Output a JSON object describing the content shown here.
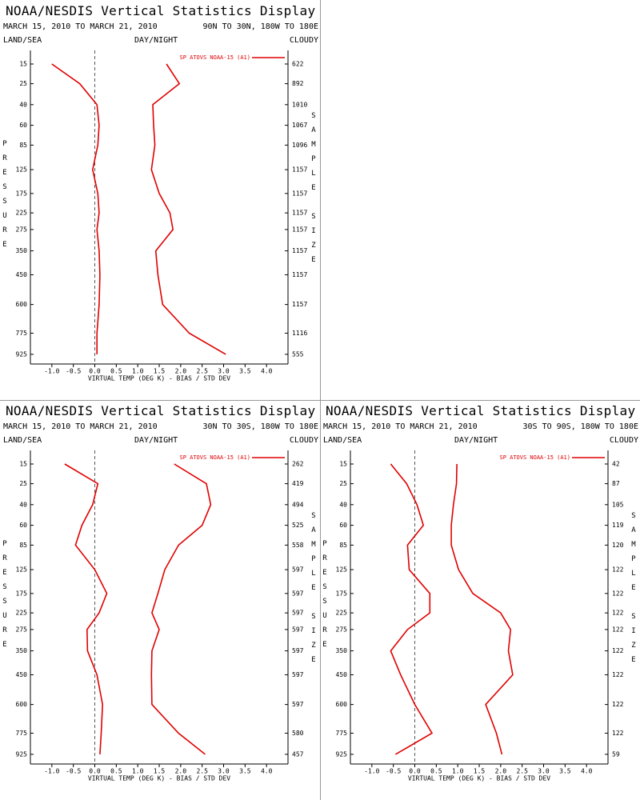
{
  "chart_data": [
    {
      "type": "line",
      "title": "NOAA/NESDIS Vertical Statistics Display",
      "subtitle": "MARCH 15, 2010 TO MARCH 21, 2010",
      "region": "90N TO 30N, 180W TO 180E",
      "land_sea": "LAND/SEA",
      "day_night": "DAY/NIGHT",
      "cloudy": "CLOUDY",
      "ylabel": "PRESSURE",
      "y2label": "SAMPLE SIZE",
      "xlabel": "VIRTUAL TEMP (DEG K) - BIAS / STD DEV",
      "xlim": [
        -1.5,
        4.5
      ],
      "ylim": [
        10,
        1000
      ],
      "xticks": [
        {
          "value": -1,
          "label": "-1.0"
        },
        -0.5,
        {
          "value": 0,
          "label": "0.0"
        },
        0.5,
        {
          "value": 1,
          "label": "1.0"
        },
        1.5,
        {
          "value": 2,
          "label": "2.0"
        },
        2.5,
        {
          "value": 3,
          "label": "3.0"
        },
        3.5,
        {
          "value": 4,
          "label": "4.0"
        }
      ],
      "yticks": [
        15,
        25,
        40,
        60,
        85,
        125,
        175,
        225,
        275,
        350,
        450,
        600,
        775,
        925
      ],
      "sample_size": [
        622,
        892,
        1010,
        1067,
        1096,
        1157,
        1157,
        1157,
        1157,
        1157,
        1157,
        1157,
        1116,
        555
      ],
      "zero_line": true,
      "series": [
        {
          "name": "SP ATOVS NOAA-15 (A1)",
          "color": "#e00000",
          "bias": [
            -1.0,
            -0.35,
            0.05,
            0.1,
            0.07,
            -0.05,
            0.07,
            0.1,
            0.05,
            0.1,
            0.12,
            0.1,
            0.05,
            0.05
          ],
          "std_dev": [
            1.67,
            1.97,
            1.35,
            1.37,
            1.4,
            1.32,
            1.5,
            1.75,
            1.82,
            1.42,
            1.47,
            1.58,
            2.2,
            3.05
          ]
        }
      ]
    },
    {
      "type": "line",
      "title": "NOAA/NESDIS Vertical Statistics Display",
      "subtitle": "MARCH 15, 2010 TO MARCH 21, 2010",
      "region": "30N TO 30S, 180W TO 180E",
      "land_sea": "LAND/SEA",
      "day_night": "DAY/NIGHT",
      "cloudy": "CLOUDY",
      "ylabel": "PRESSURE",
      "y2label": "SAMPLE SIZE",
      "xlabel": "VIRTUAL TEMP (DEG K) - BIAS / STD DEV",
      "xlim": [
        -1.5,
        4.5
      ],
      "ylim": [
        10,
        1000
      ],
      "xticks": [
        {
          "value": -1,
          "label": "-1.0"
        },
        -0.5,
        {
          "value": 0,
          "label": "0.0"
        },
        0.5,
        {
          "value": 1,
          "label": "1.0"
        },
        1.5,
        {
          "value": 2,
          "label": "2.0"
        },
        2.5,
        {
          "value": 3,
          "label": "3.0"
        },
        3.5,
        {
          "value": 4,
          "label": "4.0"
        }
      ],
      "yticks": [
        15,
        25,
        40,
        60,
        85,
        125,
        175,
        225,
        275,
        350,
        450,
        600,
        775,
        925
      ],
      "sample_size": [
        262,
        419,
        494,
        525,
        558,
        597,
        597,
        597,
        597,
        597,
        597,
        597,
        580,
        457
      ],
      "zero_line": true,
      "series": [
        {
          "name": "SP ATOVS NOAA-15 (A1)",
          "color": "#e00000",
          "bias": [
            -0.7,
            0.07,
            -0.05,
            -0.3,
            -0.45,
            0.0,
            0.28,
            0.1,
            -0.18,
            -0.17,
            0.05,
            0.18,
            0.15,
            0.12
          ],
          "std_dev": [
            1.85,
            2.6,
            2.7,
            2.5,
            1.95,
            1.63,
            1.47,
            1.33,
            1.5,
            1.33,
            1.32,
            1.33,
            1.95,
            2.57
          ]
        }
      ]
    },
    {
      "type": "line",
      "title": "NOAA/NESDIS Vertical Statistics Display",
      "subtitle": "MARCH 15, 2010 TO MARCH 21, 2010",
      "region": "30S TO 90S, 180W TO 180E",
      "land_sea": "LAND/SEA",
      "day_night": "DAY/NIGHT",
      "cloudy": "CLOUDY",
      "ylabel": "PRESSURE",
      "y2label": "SAMPLE SIZE",
      "xlabel": "VIRTUAL TEMP (DEG K) - BIAS / STD DEV",
      "xlim": [
        -1.5,
        4.5
      ],
      "ylim": [
        10,
        1000
      ],
      "xticks": [
        {
          "value": -1,
          "label": "-1.0"
        },
        -0.5,
        {
          "value": 0,
          "label": "0.0"
        },
        0.5,
        {
          "value": 1,
          "label": "1.0"
        },
        1.5,
        {
          "value": 2,
          "label": "2.0"
        },
        2.5,
        {
          "value": 3,
          "label": "3.0"
        },
        3.5,
        {
          "value": 4,
          "label": "4.0"
        }
      ],
      "yticks": [
        15,
        25,
        40,
        60,
        85,
        125,
        175,
        225,
        275,
        350,
        450,
        600,
        775,
        925
      ],
      "sample_size": [
        42,
        87,
        105,
        119,
        120,
        122,
        122,
        122,
        122,
        122,
        122,
        122,
        122,
        59
      ],
      "zero_line": true,
      "series": [
        {
          "name": "SP ATOVS NOAA-15 (A1)",
          "color": "#e00000",
          "bias": [
            -0.56,
            -0.19,
            0.05,
            0.2,
            -0.17,
            -0.13,
            0.35,
            0.35,
            -0.17,
            -0.56,
            -0.33,
            0.0,
            0.4,
            -0.45
          ],
          "std_dev": [
            0.98,
            0.97,
            0.9,
            0.85,
            0.85,
            1.02,
            1.35,
            2.0,
            2.23,
            2.18,
            2.28,
            1.65,
            1.9,
            2.03
          ]
        }
      ]
    }
  ]
}
